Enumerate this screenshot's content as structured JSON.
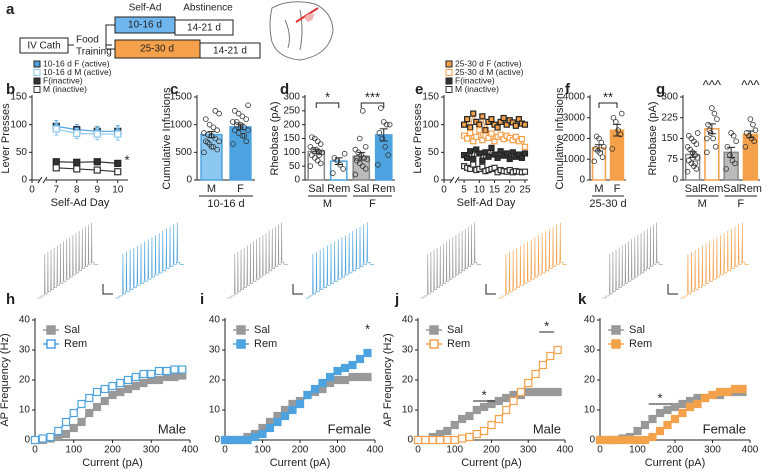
{
  "diagram": {
    "label": "a",
    "iv_cath": "IV Cath",
    "food": "Food",
    "training": "Training",
    "self_ad": "Self-Ad",
    "abstinence": "Abstinence",
    "short": "10-16 d",
    "long": "25-30 d",
    "abst_short": "14-21 d",
    "abst_long": "14-21 d"
  },
  "chart_data": [
    {
      "type": "line",
      "label": "b",
      "ylabel": "Lever Presses",
      "xlabel": "Self-Ad Day",
      "xlim": [
        0,
        10.5
      ],
      "xbreak": [
        0.5,
        6.5
      ],
      "xticks": [
        0,
        7,
        8,
        9,
        10
      ],
      "ylim": [
        0,
        150
      ],
      "yticks": [
        0,
        50,
        100,
        150
      ],
      "legend": "top",
      "annotations": [
        "*"
      ],
      "x": [
        7,
        8,
        9,
        10
      ],
      "series": [
        {
          "name": "10-16 d F (active)",
          "color": "#4da3e0",
          "filled": true,
          "values": [
            97,
            91,
            88,
            88
          ],
          "errors": [
            10,
            9,
            9,
            10
          ]
        },
        {
          "name": "10-16 d M (active)",
          "color": "#8cc8f0",
          "filled": false,
          "values": [
            92,
            84,
            83,
            83
          ],
          "errors": [
            11,
            9,
            10,
            11
          ]
        },
        {
          "name": "F(inactive)",
          "color": "#333333",
          "filled": true,
          "values": [
            33,
            32,
            33,
            30
          ],
          "errors": [
            4,
            4,
            4,
            4
          ]
        },
        {
          "name": "M (inactive)",
          "color": "#333333",
          "filled": false,
          "values": [
            22,
            20,
            18,
            15
          ],
          "errors": [
            3,
            3,
            3,
            3
          ]
        }
      ]
    },
    {
      "type": "bar",
      "label": "c",
      "ylabel": "Cumulative Infusions",
      "xlabel": "10-16 d",
      "ylim": [
        0,
        1500
      ],
      "yticks": [
        0,
        500,
        1000,
        1500
      ],
      "categories": [
        "M",
        "F"
      ],
      "values": [
        820,
        960
      ],
      "errors": [
        55,
        50
      ],
      "colors": [
        "#4da3e0",
        "#4da3e0"
      ],
      "fills": [
        "#8cc8f0",
        "#4da3e0"
      ],
      "points": [
        [
          500,
          550,
          600,
          650,
          700,
          700,
          750,
          800,
          820,
          850,
          900,
          950,
          1000,
          1100,
          1200,
          1250,
          600,
          680
        ],
        [
          650,
          700,
          800,
          850,
          900,
          900,
          950,
          1000,
          1000,
          1050,
          1100,
          1150,
          1200,
          1250,
          1350,
          800,
          950,
          1050
        ]
      ]
    },
    {
      "type": "bar",
      "label": "d",
      "ylabel": "Rheobase (pA)",
      "ylim": [
        0,
        300
      ],
      "yticks": [
        0,
        50,
        100,
        150,
        200,
        250,
        300
      ],
      "annotations": [
        "*",
        "***"
      ],
      "categories": [
        "Sal",
        "Rem",
        "Sal",
        "Rem"
      ],
      "groups": [
        "M",
        "F"
      ],
      "values": [
        103,
        68,
        86,
        163
      ],
      "errors": [
        8,
        12,
        14,
        22
      ],
      "colors": [
        "#888888",
        "#4da3e0",
        "#888888",
        "#4da3e0"
      ],
      "fills": [
        "#ffffff",
        "#ffffff",
        "#bbbbbb",
        "#4da3e0"
      ],
      "points": [
        [
          50,
          60,
          70,
          80,
          90,
          100,
          100,
          110,
          110,
          120,
          130,
          140,
          150,
          155,
          100,
          90
        ],
        [
          25,
          40,
          55,
          70,
          80,
          95
        ],
        [
          20,
          40,
          50,
          60,
          70,
          75,
          80,
          90,
          100,
          110,
          120,
          250,
          150,
          80
        ],
        [
          55,
          90,
          120,
          150,
          170,
          200,
          200,
          210,
          260
        ]
      ]
    },
    {
      "type": "line",
      "label": "e",
      "ylabel": "Lever Presses",
      "xlabel": "Self-Ad Day",
      "xlim": [
        0,
        26
      ],
      "xbreak": [
        1,
        3
      ],
      "xticks": [
        0,
        5,
        10,
        15,
        20,
        25
      ],
      "ylim": [
        0,
        150
      ],
      "yticks": [
        0,
        50,
        100,
        150
      ],
      "legend": "top",
      "x": [
        5,
        6,
        7,
        8,
        9,
        10,
        11,
        12,
        13,
        14,
        15,
        16,
        17,
        18,
        19,
        20,
        21,
        22,
        23,
        24,
        25
      ],
      "series": [
        {
          "name": "25-30 d F (active)",
          "color": "#f5a04a",
          "filled": true,
          "values": [
            100,
            110,
            95,
            120,
            105,
            100,
            115,
            90,
            105,
            110,
            100,
            95,
            105,
            112,
            100,
            108,
            104,
            98,
            110,
            102,
            100
          ]
        },
        {
          "name": "25-30 d M (active)",
          "color": "#f5a04a",
          "filled": false,
          "values": [
            80,
            75,
            85,
            70,
            78,
            90,
            72,
            80,
            76,
            84,
            70,
            78,
            82,
            74,
            80,
            76,
            72,
            78,
            70,
            74,
            60
          ]
        },
        {
          "name": "F(inactive)",
          "color": "#333333",
          "filled": true,
          "values": [
            45,
            40,
            52,
            38,
            55,
            48,
            35,
            50,
            42,
            58,
            46,
            40,
            52,
            44,
            48,
            38,
            50,
            42,
            46,
            40,
            48
          ]
        },
        {
          "name": "M (inactive)",
          "color": "#333333",
          "filled": false,
          "values": [
            25,
            22,
            20,
            28,
            18,
            20,
            24,
            16,
            18,
            20,
            22,
            14,
            18,
            16,
            15,
            18,
            14,
            16,
            15,
            14,
            15
          ]
        }
      ]
    },
    {
      "type": "bar",
      "label": "f",
      "ylabel": "Cumulative Infusions",
      "xlabel": "25-30 d",
      "ylim": [
        0,
        4000
      ],
      "yticks": [
        0,
        1000,
        2000,
        3000,
        4000
      ],
      "annotations": [
        "**"
      ],
      "categories": [
        "M",
        "F"
      ],
      "values": [
        1550,
        2400
      ],
      "errors": [
        150,
        280
      ],
      "colors": [
        "#f5a04a",
        "#f5a04a"
      ],
      "fills": [
        "#ffffff",
        "#f5a04a"
      ],
      "points": [
        [
          900,
          1100,
          1300,
          1400,
          1500,
          1600,
          1800,
          2000,
          2100
        ],
        [
          1500,
          2200,
          2400,
          2800,
          3000,
          3200
        ]
      ]
    },
    {
      "type": "bar",
      "label": "g",
      "ylabel": "Rheobase (pA)",
      "ylim": [
        0,
        300
      ],
      "yticks": [
        0,
        75,
        150,
        225,
        300
      ],
      "annotations": [
        "^^^",
        "^^^"
      ],
      "categories": [
        "Sal",
        "Rem",
        "Sal",
        "Rem"
      ],
      "groups": [
        "M",
        "F"
      ],
      "values": [
        92,
        185,
        100,
        165
      ],
      "errors": [
        10,
        18,
        18,
        12
      ],
      "colors": [
        "#888888",
        "#f5a04a",
        "#888888",
        "#f5a04a"
      ],
      "fills": [
        "#ffffff",
        "#ffffff",
        "#bbbbbb",
        "#f5a04a"
      ],
      "points": [
        [
          30,
          40,
          50,
          60,
          70,
          80,
          90,
          100,
          110,
          120,
          130,
          140,
          150,
          160,
          170,
          60,
          80
        ],
        [
          100,
          120,
          150,
          170,
          200,
          220,
          240,
          260,
          180,
          150
        ],
        [
          40,
          60,
          70,
          90,
          120,
          140,
          160,
          170
        ],
        [
          120,
          140,
          150,
          160,
          170,
          180,
          200,
          220
        ]
      ]
    },
    {
      "type": "line",
      "label": "h",
      "ylabel": "AP Frequency (Hz)",
      "xlabel": "Current (pA)",
      "sex": "Male",
      "xlim": [
        0,
        400
      ],
      "xticks": [
        0,
        100,
        200,
        300,
        400
      ],
      "ylim": [
        0,
        40
      ],
      "yticks": [
        0,
        10,
        20,
        30,
        40
      ],
      "legend": "upper left",
      "x": [
        0,
        20,
        40,
        60,
        80,
        100,
        120,
        140,
        160,
        180,
        200,
        220,
        240,
        260,
        280,
        300,
        320,
        340,
        360,
        380
      ],
      "series": [
        {
          "name": "Sal",
          "color": "#999999",
          "filled": true,
          "values": [
            0,
            0,
            0.5,
            1,
            2,
            4,
            6,
            9,
            11,
            13,
            15,
            16,
            17,
            18,
            19,
            20,
            20,
            21,
            21,
            21.5
          ]
        },
        {
          "name": "Rem",
          "color": "#4da3e0",
          "filled": false,
          "values": [
            0,
            0.5,
            1,
            3,
            6,
            9,
            12,
            14,
            16,
            17,
            18,
            19,
            20,
            21,
            22,
            22,
            23,
            23,
            23.5,
            23.5
          ]
        }
      ]
    },
    {
      "type": "line",
      "label": "i",
      "xlabel": "Current (pA)",
      "sex": "Female",
      "annotations": [
        "*"
      ],
      "xlim": [
        0,
        400
      ],
      "xticks": [
        0,
        100,
        200,
        300,
        400
      ],
      "ylim": [
        0,
        40
      ],
      "yticks": [
        0,
        10,
        20,
        30,
        40
      ],
      "legend": "upper left",
      "x": [
        0,
        20,
        40,
        60,
        80,
        100,
        120,
        140,
        160,
        180,
        200,
        220,
        240,
        260,
        280,
        300,
        320,
        340,
        360,
        380
      ],
      "series": [
        {
          "name": "Sal",
          "color": "#999999",
          "filled": true,
          "values": [
            0,
            0,
            0,
            1,
            2,
            4,
            6,
            8,
            10,
            12,
            13,
            15,
            16,
            17,
            19,
            20,
            20,
            21,
            21,
            21
          ]
        },
        {
          "name": "Rem",
          "color": "#4da3e0",
          "filled": true,
          "values": [
            0,
            0,
            0,
            0,
            1,
            2,
            4,
            6,
            8,
            10,
            12,
            15,
            17,
            19,
            21,
            23,
            24,
            25,
            27,
            29
          ]
        }
      ]
    },
    {
      "type": "line",
      "label": "j",
      "ylabel": "AP Frequency (Hz)",
      "xlabel": "Current (pA)",
      "sex": "Male",
      "annotations": [
        "*",
        "*"
      ],
      "xlim": [
        0,
        400
      ],
      "xticks": [
        0,
        100,
        200,
        300,
        400
      ],
      "ylim": [
        0,
        40
      ],
      "yticks": [
        0,
        10,
        20,
        30,
        40
      ],
      "legend": "upper left",
      "x": [
        0,
        20,
        40,
        60,
        80,
        100,
        120,
        140,
        160,
        180,
        200,
        220,
        240,
        260,
        280,
        300,
        320,
        340,
        360,
        380
      ],
      "series": [
        {
          "name": "Sal",
          "color": "#999999",
          "filled": true,
          "values": [
            0,
            0,
            1,
            2,
            3,
            5,
            7,
            8,
            10,
            11,
            12,
            13,
            14,
            15,
            15,
            16,
            16,
            16,
            16,
            16
          ]
        },
        {
          "name": "Rem",
          "color": "#f5a04a",
          "filled": false,
          "values": [
            0,
            0,
            0,
            0,
            0,
            0,
            0.5,
            1,
            2,
            3,
            5,
            7,
            10,
            13,
            16,
            19,
            22,
            25,
            28,
            30
          ]
        }
      ]
    },
    {
      "type": "line",
      "label": "k",
      "xlabel": "Current (pA)",
      "sex": "Female",
      "annotations": [
        "*"
      ],
      "xlim": [
        0,
        400
      ],
      "xticks": [
        0,
        100,
        200,
        300,
        400
      ],
      "ylim": [
        0,
        40
      ],
      "yticks": [
        0,
        10,
        20,
        30,
        40
      ],
      "legend": "upper left",
      "x": [
        0,
        20,
        40,
        60,
        80,
        100,
        120,
        140,
        160,
        180,
        200,
        220,
        240,
        260,
        280,
        300,
        320,
        340,
        360,
        380
      ],
      "series": [
        {
          "name": "Sal",
          "color": "#999999",
          "filled": true,
          "values": [
            0,
            0,
            0,
            0.5,
            1,
            3,
            5,
            7,
            9,
            10,
            11,
            12,
            13,
            14,
            14,
            15,
            15,
            16,
            16,
            16
          ]
        },
        {
          "name": "Rem",
          "color": "#f5a04a",
          "filled": true,
          "values": [
            0,
            0,
            0,
            0,
            0,
            0,
            0,
            1,
            3,
            5,
            7,
            9,
            11,
            12,
            14,
            15,
            16,
            16,
            17,
            17
          ]
        }
      ]
    }
  ]
}
